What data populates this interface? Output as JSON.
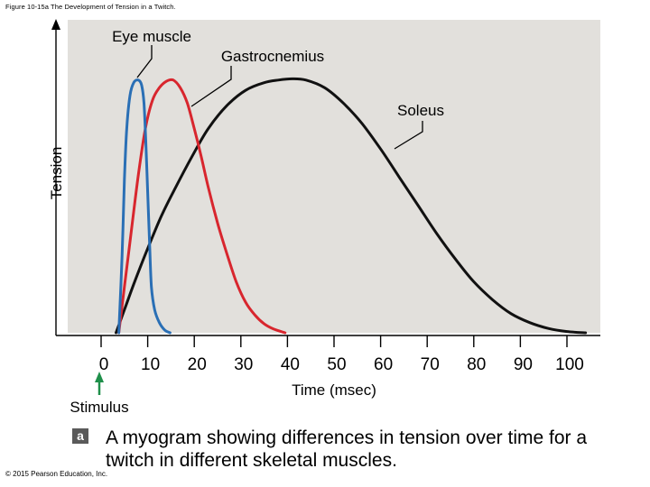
{
  "figure_caption": "Figure 10-15a The Development of Tension in a Twitch.",
  "copyright": "© 2015 Pearson Education, Inc.",
  "panel_label": "a",
  "panel_description": "A myogram showing differences in tension over time for a twitch in different skeletal muscles.",
  "colors": {
    "plot_bg": "#e2e0dc",
    "eye": "#2a6fb5",
    "gastro": "#d8262e",
    "soleus": "#111111",
    "stimulus_arrow": "#1f8f4a"
  },
  "chart_data": {
    "type": "line",
    "title": "",
    "xlabel": "Time (msec)",
    "ylabel": "Tension",
    "xlim": [
      -7,
      107
    ],
    "ylim": [
      0,
      1
    ],
    "x_ticks": [
      0,
      10,
      20,
      30,
      40,
      50,
      60,
      70,
      80,
      90,
      100
    ],
    "x_tick_labels": [
      "0",
      "10",
      "20",
      "30",
      "40",
      "50",
      "60",
      "70",
      "80",
      "90",
      "100"
    ],
    "stimulus": {
      "label": "Stimulus",
      "x": 0
    },
    "series": [
      {
        "name": "Eye muscle",
        "color_key": "eye",
        "points": [
          [
            3.8,
            0
          ],
          [
            4.5,
            0.3
          ],
          [
            5.0,
            0.6
          ],
          [
            5.5,
            0.8
          ],
          [
            6.2,
            0.93
          ],
          [
            7.0,
            0.98
          ],
          [
            8.0,
            0.99
          ],
          [
            8.7,
            0.97
          ],
          [
            9.2,
            0.9
          ],
          [
            9.6,
            0.75
          ],
          [
            10.0,
            0.55
          ],
          [
            10.4,
            0.35
          ],
          [
            10.8,
            0.18
          ],
          [
            11.5,
            0.09
          ],
          [
            12.5,
            0.04
          ],
          [
            13.7,
            0.01
          ],
          [
            14.8,
            0
          ]
        ]
      },
      {
        "name": "Gastrocnemius",
        "color_key": "gastro",
        "points": [
          [
            3.8,
            0
          ],
          [
            5.0,
            0.18
          ],
          [
            6.5,
            0.4
          ],
          [
            8.0,
            0.62
          ],
          [
            9.5,
            0.8
          ],
          [
            11.0,
            0.91
          ],
          [
            12.5,
            0.96
          ],
          [
            14.0,
            0.985
          ],
          [
            15.5,
            0.99
          ],
          [
            17.0,
            0.96
          ],
          [
            18.5,
            0.9
          ],
          [
            20.0,
            0.8
          ],
          [
            21.5,
            0.69
          ],
          [
            23.0,
            0.57
          ],
          [
            25.0,
            0.43
          ],
          [
            27.0,
            0.31
          ],
          [
            29.0,
            0.2
          ],
          [
            31.0,
            0.12
          ],
          [
            33.0,
            0.07
          ],
          [
            35.0,
            0.035
          ],
          [
            37.0,
            0.015
          ],
          [
            39.5,
            0
          ]
        ]
      },
      {
        "name": "Soleus",
        "color_key": "soleus",
        "points": [
          [
            3.2,
            0
          ],
          [
            5.0,
            0.09
          ],
          [
            7.0,
            0.19
          ],
          [
            10.0,
            0.33
          ],
          [
            13.0,
            0.46
          ],
          [
            16.0,
            0.57
          ],
          [
            19.5,
            0.69
          ],
          [
            23.0,
            0.8
          ],
          [
            27.0,
            0.89
          ],
          [
            31.0,
            0.95
          ],
          [
            35.0,
            0.98
          ],
          [
            38.0,
            0.99
          ],
          [
            41.0,
            0.995
          ],
          [
            44.0,
            0.99
          ],
          [
            48.0,
            0.96
          ],
          [
            52.0,
            0.9
          ],
          [
            56.0,
            0.82
          ],
          [
            60.0,
            0.72
          ],
          [
            64.0,
            0.61
          ],
          [
            68.0,
            0.5
          ],
          [
            72.0,
            0.39
          ],
          [
            76.0,
            0.29
          ],
          [
            80.0,
            0.2
          ],
          [
            84.0,
            0.13
          ],
          [
            88.0,
            0.075
          ],
          [
            92.0,
            0.04
          ],
          [
            96.0,
            0.017
          ],
          [
            100.0,
            0.005
          ],
          [
            104.0,
            0
          ]
        ]
      }
    ],
    "annotations": [
      {
        "label": "Eye muscle",
        "series": "Eye muscle"
      },
      {
        "label": "Gastrocnemius",
        "series": "Gastrocnemius"
      },
      {
        "label": "Soleus",
        "series": "Soleus"
      }
    ]
  }
}
